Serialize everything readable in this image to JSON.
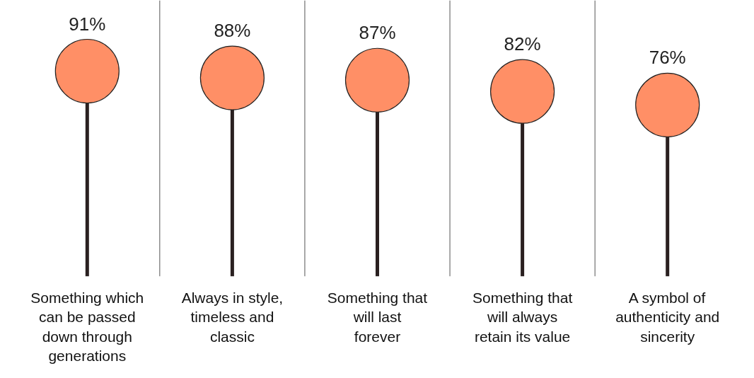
{
  "chart_data": {
    "type": "lollipop",
    "categories": [
      "Something which can be passed down through generations",
      "Always in style, timeless and classic",
      "Something that will last forever",
      "Something that will always retain its value",
      "A symbol of authenticity and sincerity"
    ],
    "values": [
      91,
      88,
      87,
      82,
      76
    ],
    "value_labels": [
      "91%",
      "88%",
      "87%",
      "82%",
      "76%"
    ],
    "color": "#ff8f66",
    "grid": "x"
  }
}
